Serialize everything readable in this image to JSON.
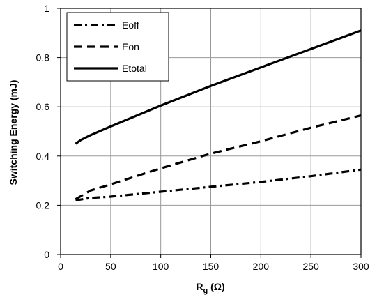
{
  "chart_data": {
    "type": "line",
    "ylabel": "Switching Energy (mJ)",
    "xlabel": {
      "main": "R",
      "sub": "g",
      "unit": " (Ω)"
    },
    "xlim": [
      0,
      300
    ],
    "ylim": [
      0,
      1
    ],
    "x_ticks": [
      0,
      50,
      100,
      150,
      200,
      250,
      300
    ],
    "y_ticks": [
      0,
      0.2,
      0.4,
      0.6,
      0.8,
      1
    ],
    "y_tick_labels": [
      "0",
      "0.2",
      "0.4",
      "0.6",
      "0.8",
      "1"
    ],
    "grid": true,
    "legend_position": "top-left",
    "series": [
      {
        "name": "Eoff",
        "style": "dash-dot",
        "x": [
          15,
          30,
          50,
          100,
          150,
          200,
          250,
          300
        ],
        "y": [
          0.22,
          0.23,
          0.235,
          0.255,
          0.275,
          0.295,
          0.318,
          0.345
        ]
      },
      {
        "name": "Eon",
        "style": "dashed",
        "x": [
          15,
          30,
          50,
          100,
          150,
          200,
          250,
          300
        ],
        "y": [
          0.225,
          0.26,
          0.285,
          0.35,
          0.41,
          0.46,
          0.515,
          0.565
        ]
      },
      {
        "name": "Etotal",
        "style": "solid",
        "x": [
          15,
          20,
          30,
          50,
          100,
          150,
          200,
          250,
          300
        ],
        "y": [
          0.45,
          0.465,
          0.485,
          0.52,
          0.605,
          0.685,
          0.76,
          0.835,
          0.91
        ]
      }
    ]
  }
}
